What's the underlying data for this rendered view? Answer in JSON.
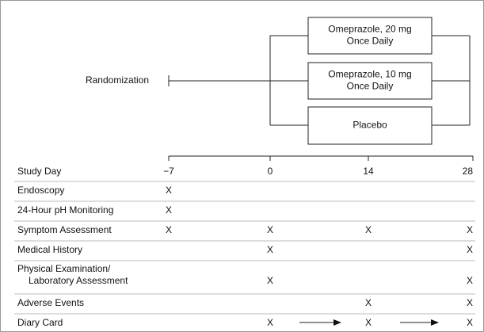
{
  "randomization": "Randomization",
  "arms": [
    {
      "lines": [
        "Omeprazole, 20 mg",
        "Once Daily"
      ]
    },
    {
      "lines": [
        "Omeprazole, 10 mg",
        "Once Daily"
      ]
    },
    {
      "lines": [
        "Placebo"
      ]
    }
  ],
  "schedule": {
    "header": "Study Day",
    "days": [
      "−7",
      "0",
      "14",
      "28"
    ],
    "rows": [
      {
        "label": [
          "Endoscopy"
        ],
        "cells": [
          "X",
          null,
          null,
          null
        ]
      },
      {
        "label": [
          "24-Hour pH Monitoring"
        ],
        "cells": [
          "X",
          null,
          null,
          null
        ]
      },
      {
        "label": [
          "Symptom Assessment"
        ],
        "cells": [
          "X",
          "X",
          "X",
          "X"
        ]
      },
      {
        "label": [
          "Medical History"
        ],
        "cells": [
          null,
          "X",
          null,
          "X"
        ]
      },
      {
        "label": [
          "Physical Examination/",
          "Laboratory Assessment"
        ],
        "cells": [
          null,
          "X",
          null,
          "X"
        ]
      },
      {
        "label": [
          "Adverse Events"
        ],
        "cells": [
          null,
          null,
          "X",
          "X"
        ]
      },
      {
        "label": [
          "Diary Card"
        ],
        "cells": [
          null,
          "X",
          "X",
          "X"
        ]
      }
    ]
  }
}
